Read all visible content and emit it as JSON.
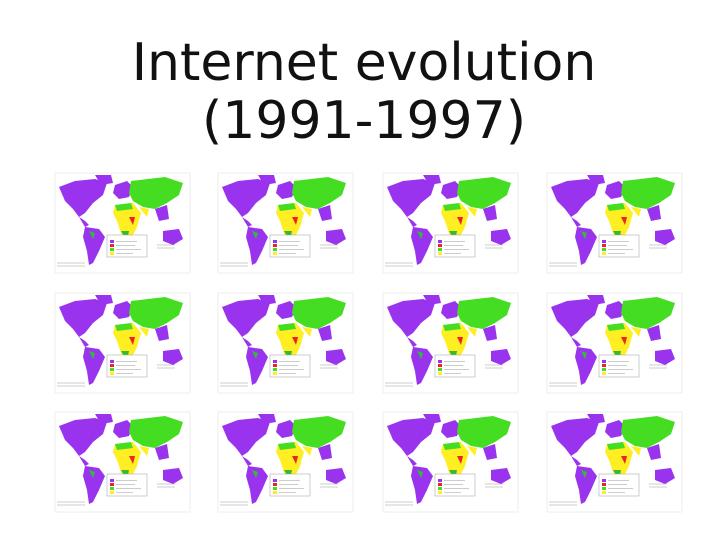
{
  "header": {
    "title_lines": [
      "Internet evolution",
      "(1991-1997)"
    ]
  }
}
